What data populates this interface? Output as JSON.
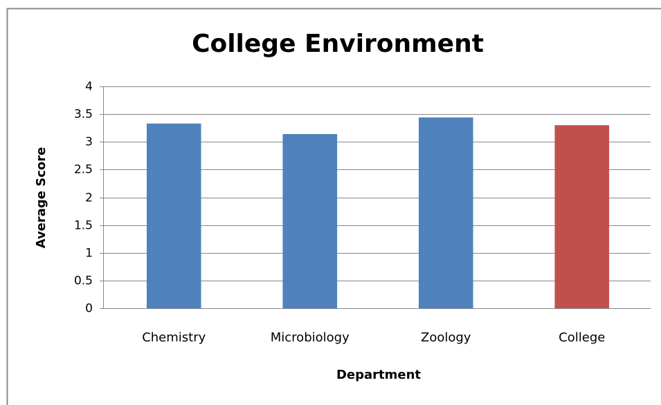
{
  "chart_data": {
    "type": "bar",
    "title": "College Environment",
    "x_label": "Department",
    "y_label": "Average Score",
    "categories": [
      "Chemistry",
      "Microbiology",
      "Zoology",
      "College"
    ],
    "values": [
      3.33,
      3.14,
      3.44,
      3.3
    ],
    "colors": [
      "#4f81bd",
      "#4f81bd",
      "#4f81bd",
      "#c0504d"
    ],
    "ylim": [
      0,
      4
    ],
    "yticks": [
      0,
      0.5,
      1,
      1.5,
      2,
      2.5,
      3,
      3.5,
      4
    ],
    "grid": true
  }
}
